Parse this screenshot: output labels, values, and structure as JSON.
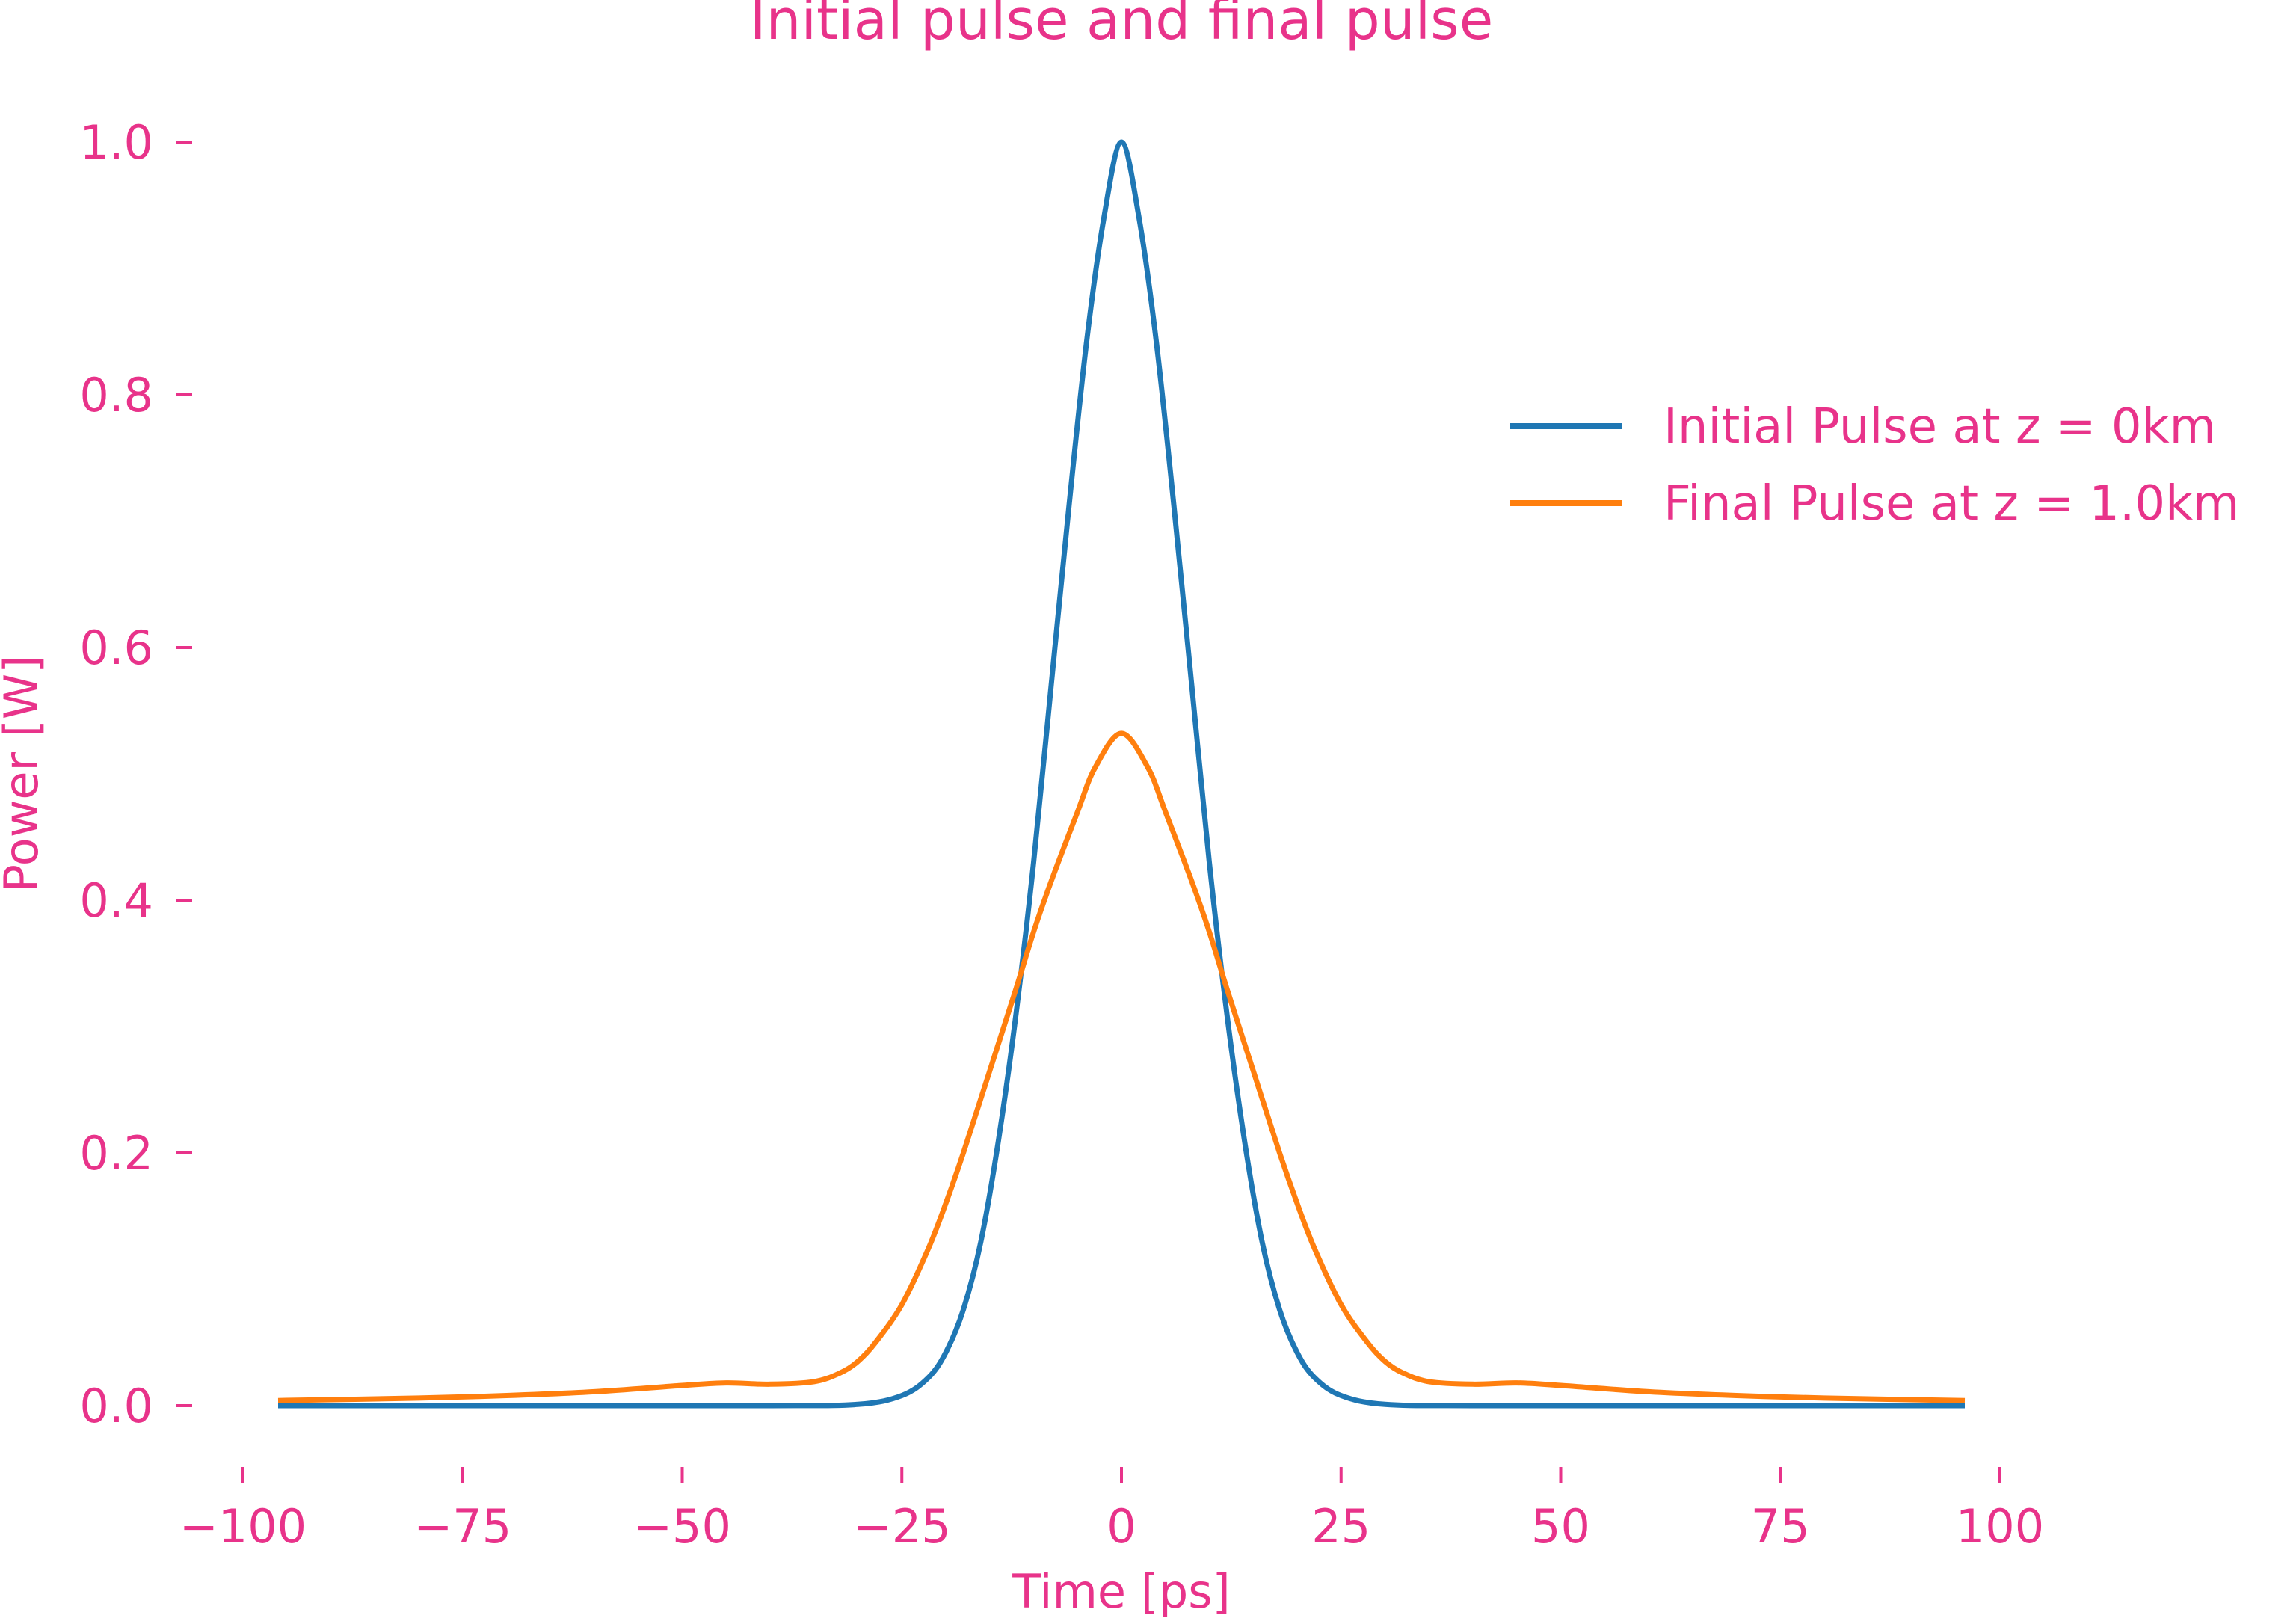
{
  "colors": {
    "text": "#e8338a",
    "initial": "#1f77b4",
    "final": "#ff7f0e",
    "background": "#ffffff"
  },
  "chart_data": {
    "type": "line",
    "title": "Initial pulse and final pulse",
    "xlabel": "Time [ps]",
    "ylabel": "Power [W]",
    "xlim": [
      -100,
      100
    ],
    "ylim": [
      0.0,
      1.0
    ],
    "grid": false,
    "legend_position": "upper right",
    "x_ticks": [
      -100,
      -75,
      -50,
      -25,
      0,
      25,
      50,
      75,
      100
    ],
    "x_tick_labels": [
      "−100",
      "−75",
      "−50",
      "−25",
      "0",
      "25",
      "50",
      "75",
      "100"
    ],
    "y_ticks": [
      0.0,
      0.2,
      0.4,
      0.6,
      0.8,
      1.0
    ],
    "y_tick_labels": [
      "0.0",
      "0.2",
      "0.4",
      "0.6",
      "0.8",
      "1.0"
    ],
    "series": [
      {
        "name": "Initial Pulse at z = 0km",
        "x": [
          -96,
          -60,
          -40,
          -30,
          -25,
          -22,
          -20,
          -18,
          -16,
          -14,
          -12,
          -10,
          -8,
          -6,
          -4,
          -2,
          0,
          2,
          4,
          6,
          8,
          10,
          12,
          14,
          16,
          18,
          20,
          22,
          25,
          30,
          40,
          60,
          96
        ],
        "y": [
          0.0,
          0.0,
          0.0,
          0.001,
          0.008,
          0.022,
          0.042,
          0.076,
          0.13,
          0.21,
          0.31,
          0.43,
          0.57,
          0.71,
          0.84,
          0.94,
          1.0,
          0.94,
          0.84,
          0.71,
          0.57,
          0.43,
          0.31,
          0.21,
          0.13,
          0.076,
          0.042,
          0.022,
          0.008,
          0.001,
          0.0,
          0.0,
          0.0
        ]
      },
      {
        "name": "Final Pulse at z = 1.0km",
        "x": [
          -96,
          -80,
          -70,
          -60,
          -50,
          -45,
          -40,
          -35,
          -32,
          -30,
          -28,
          -25,
          -22,
          -20,
          -18,
          -15,
          -12,
          -10,
          -8,
          -5,
          -3,
          0,
          3,
          5,
          8,
          10,
          12,
          15,
          18,
          20,
          22,
          25,
          28,
          30,
          32,
          35,
          40,
          45,
          50,
          60,
          70,
          80,
          96
        ],
        "y": [
          0.004,
          0.006,
          0.008,
          0.011,
          0.016,
          0.018,
          0.017,
          0.019,
          0.026,
          0.035,
          0.05,
          0.08,
          0.124,
          0.16,
          0.2,
          0.265,
          0.33,
          0.375,
          0.415,
          0.47,
          0.505,
          0.532,
          0.505,
          0.47,
          0.415,
          0.375,
          0.33,
          0.265,
          0.2,
          0.16,
          0.124,
          0.08,
          0.05,
          0.035,
          0.026,
          0.019,
          0.017,
          0.018,
          0.016,
          0.011,
          0.008,
          0.006,
          0.004
        ]
      }
    ]
  }
}
